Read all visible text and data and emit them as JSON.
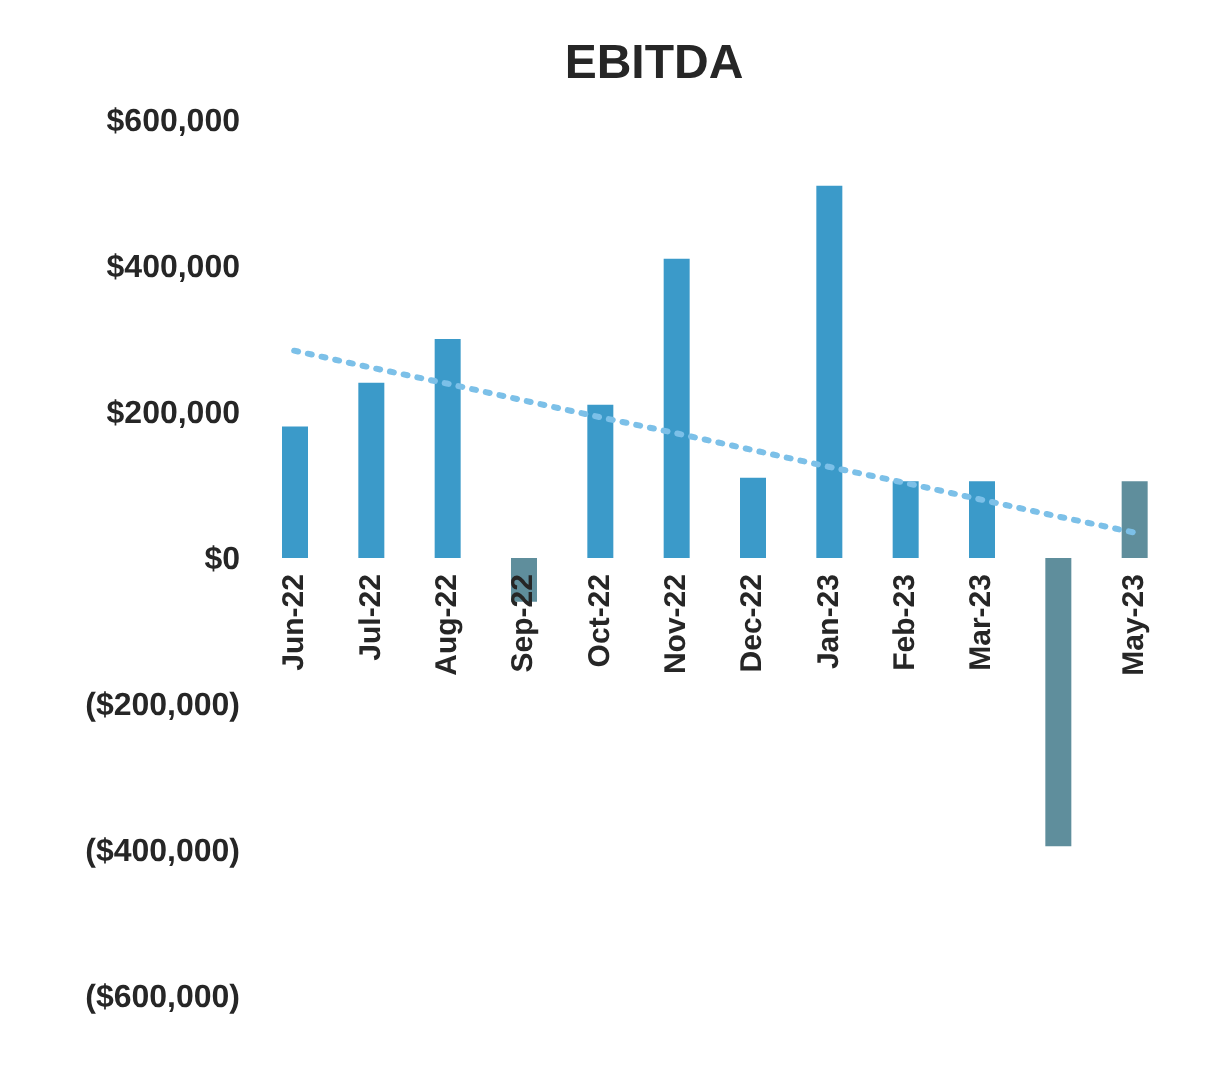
{
  "chart_data": {
    "type": "bar",
    "title": "EBITDA",
    "categories": [
      "Jun-22",
      "Jul-22",
      "Aug-22",
      "Sep-22",
      "Oct-22",
      "Nov-22",
      "Dec-22",
      "Jan-23",
      "Feb-23",
      "Mar-23",
      null,
      "May-23"
    ],
    "series": [
      {
        "values": [
          180000,
          240000,
          300000,
          -60000,
          210000,
          410000,
          110000,
          510000,
          105000,
          105000,
          -395000,
          105000
        ],
        "colors": [
          "#3b9ac9",
          "#3b9ac9",
          "#3b9ac9",
          "#5f8e9c",
          "#3b9ac9",
          "#3b9ac9",
          "#3b9ac9",
          "#3b9ac9",
          "#3b9ac9",
          "#3b9ac9",
          "#5f8e9c",
          "#5f8e9c"
        ]
      },
      {
        "type": "line",
        "color": "#7cc0e8",
        "line_style": "dotted",
        "marker": "none",
        "values": [
          284000,
          261000,
          239000,
          216000,
          193000,
          171000,
          148000,
          125000,
          103000,
          80000,
          57000,
          35000
        ]
      }
    ],
    "ylim": [
      -600000,
      600000
    ],
    "yticks": [
      {
        "value": 600000,
        "label": "$600,000"
      },
      {
        "value": 400000,
        "label": "$400,000"
      },
      {
        "value": 200000,
        "label": "$200,000"
      },
      {
        "value": 0,
        "label": "$0"
      },
      {
        "value": -200000,
        "label": "($200,000)"
      },
      {
        "value": -400000,
        "label": "($400,000)"
      },
      {
        "value": -600000,
        "label": "($600,000)"
      }
    ],
    "grid": false,
    "legend": false
  }
}
